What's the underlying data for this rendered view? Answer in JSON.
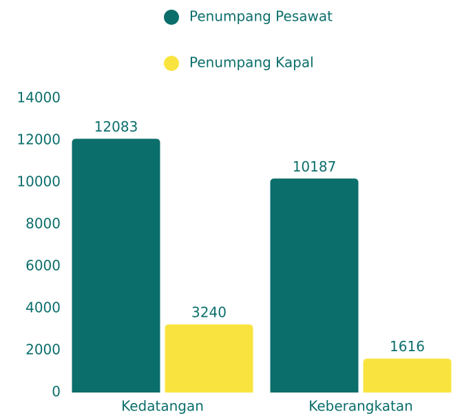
{
  "chart_data": {
    "type": "bar",
    "categories": [
      "Kedatangan",
      "Keberangkatan"
    ],
    "series": [
      {
        "name": "Penumpang Pesawat",
        "color": "#0b6e6b",
        "values": [
          12083,
          10187
        ]
      },
      {
        "name": "Penumpang Kapal",
        "color": "#f9e43f",
        "values": [
          3240,
          1616
        ]
      }
    ],
    "ylim": [
      0,
      14000
    ],
    "yticks": [
      0,
      2000,
      4000,
      6000,
      8000,
      10000,
      12000,
      14000
    ],
    "grid": false,
    "legend": "top"
  }
}
